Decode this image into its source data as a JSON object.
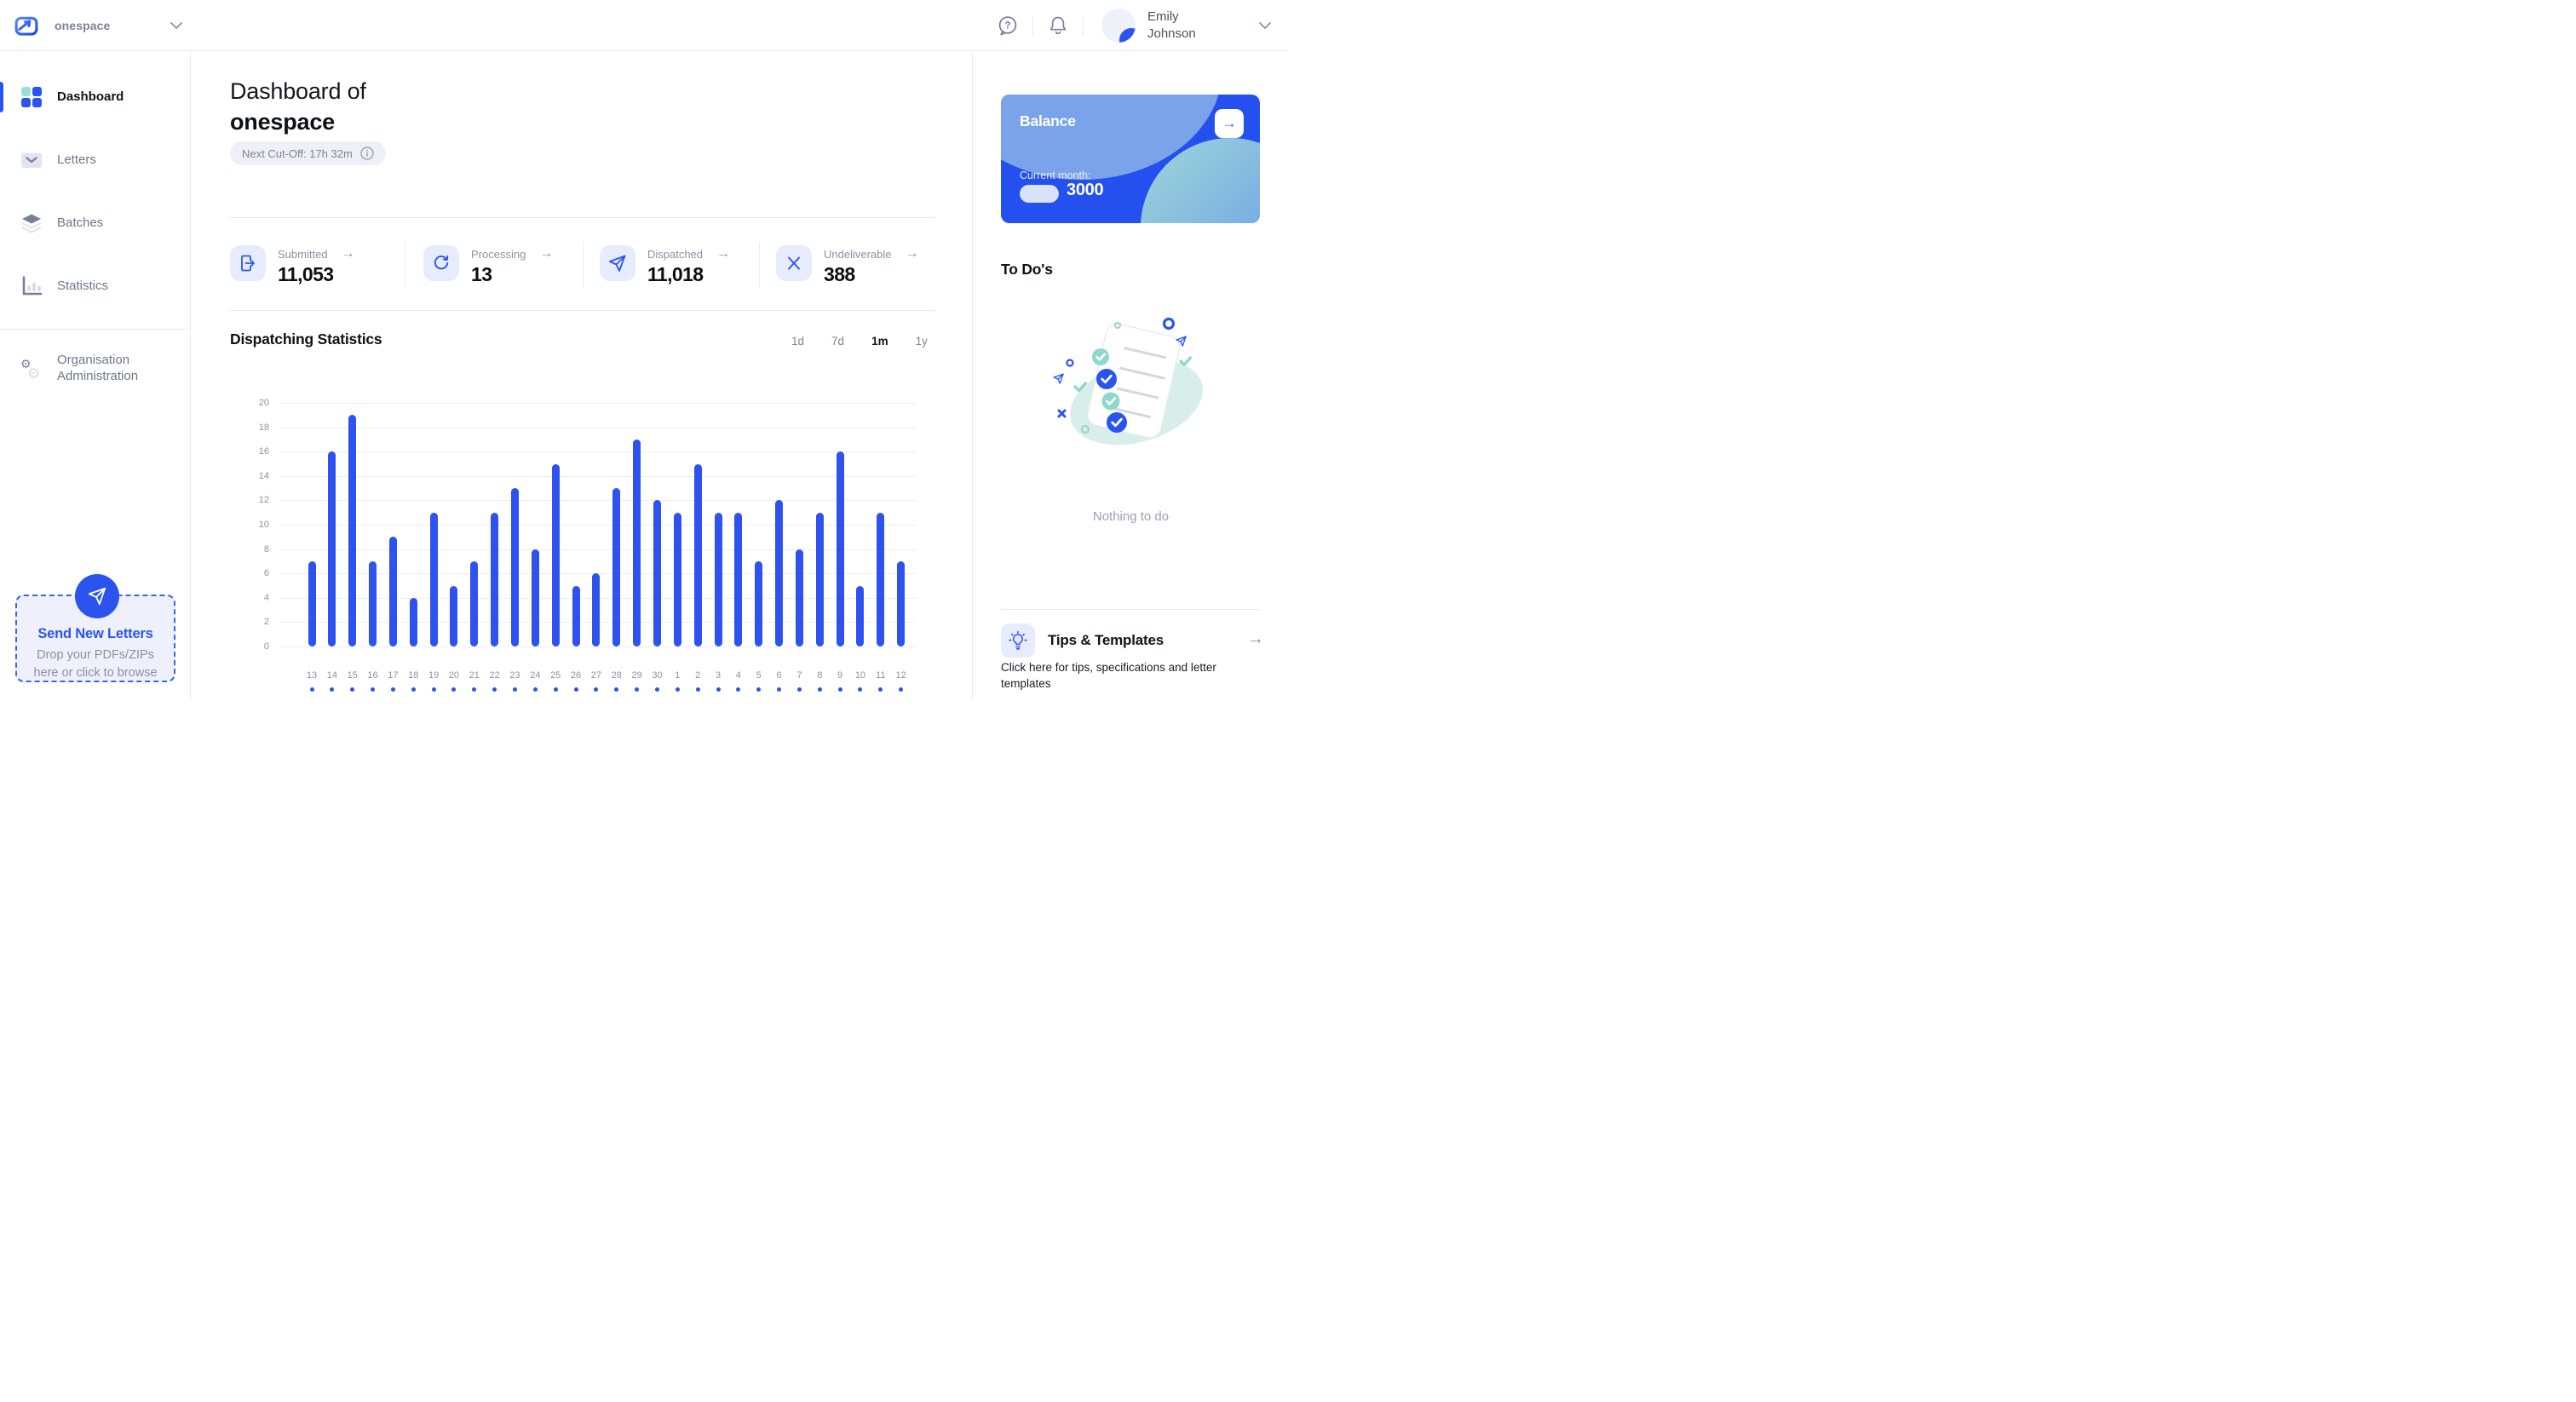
{
  "topbar": {
    "brand": "onespace",
    "user": {
      "name": "Emily Johnson"
    }
  },
  "sidebar": {
    "items": [
      {
        "label": "Dashboard",
        "active": true
      },
      {
        "label": "Letters",
        "active": false
      },
      {
        "label": "Batches",
        "active": false
      },
      {
        "label": "Statistics",
        "active": false
      },
      {
        "label": "Organisation Administration",
        "active": false
      }
    ],
    "dropzone": {
      "title": "Send New Letters",
      "subtitle": "Drop your PDFs/ZIPs here or click to browse"
    }
  },
  "main": {
    "title_prefix": "Dashboard of",
    "organisation": "onespace",
    "cutoff_badge": "Next Cut-Off: 17h 32m",
    "arrow_glyph": "→",
    "stats": [
      {
        "label": "Submitted",
        "value": "11,053",
        "icon": "document-export-icon"
      },
      {
        "label": "Processing",
        "value": "13",
        "icon": "refresh-icon"
      },
      {
        "label": "Dispatched",
        "value": "11,018",
        "icon": "paper-plane-icon"
      },
      {
        "label": "Undeliverable",
        "value": "388",
        "icon": "x-mark-icon"
      }
    ],
    "chart_section": {
      "title": "Dispatching Statistics",
      "ranges": [
        "1d",
        "7d",
        "1m",
        "1y"
      ],
      "active_range": "1m"
    }
  },
  "chart_data": {
    "type": "bar",
    "title": "Dispatching Statistics",
    "categories": [
      "13",
      "14",
      "15",
      "16",
      "17",
      "18",
      "19",
      "20",
      "21",
      "22",
      "23",
      "24",
      "25",
      "26",
      "27",
      "28",
      "29",
      "30",
      "1",
      "2",
      "3",
      "4",
      "5",
      "6",
      "7",
      "8",
      "9",
      "10",
      "11",
      "12"
    ],
    "values": [
      7,
      16,
      19,
      7,
      9,
      4,
      11,
      5,
      7,
      11,
      13,
      8,
      15,
      5,
      6,
      13,
      17,
      12,
      11,
      15,
      11,
      11,
      7,
      12,
      8,
      11,
      16,
      5,
      11,
      7
    ],
    "xlabel": "",
    "ylabel": "",
    "ylim": [
      0,
      20
    ],
    "ytick_step": 2,
    "grid": true,
    "legend": "none",
    "bar_color": "#2D52F0"
  },
  "right_panel": {
    "balance": {
      "title": "Balance",
      "current_month_label": "Current month:",
      "amount": "3000"
    },
    "todos": {
      "title": "To Do's",
      "empty_text": "Nothing to do"
    },
    "tips": {
      "title": "Tips & Templates",
      "subtitle": "Click here for tips, specifications and letter templates"
    }
  },
  "colors": {
    "accent": "#2B54EF",
    "accent_light_bg": "#E7ECFC",
    "teal": "#96DFD8",
    "muted_text": "#8B92A3"
  }
}
